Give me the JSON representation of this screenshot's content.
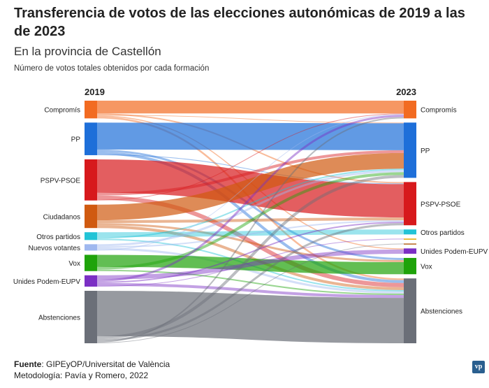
{
  "header": {
    "title": "Transferencia de votos de las elecciones autonómicas de 2019 a las de 2023",
    "subtitle": "En la provincia de Castellón",
    "note": "Número de votos totales obtenidos por cada formación"
  },
  "footer": {
    "source_label": "Fuente",
    "source_text": ": GIPEyOP/Universitat de València",
    "method": "Metodología: Pavía y Romero, 2022",
    "logo": "vp"
  },
  "chart_data": {
    "type": "sankey",
    "left_label": "2019",
    "right_label": "2023",
    "sources": [
      {
        "name": "Compromís",
        "color": "#f26b21"
      },
      {
        "name": "PP",
        "color": "#1e6fd9"
      },
      {
        "name": "PSPV-PSOE",
        "color": "#d7191c"
      },
      {
        "name": "Ciudadanos",
        "color": "#d05a10"
      },
      {
        "name": "Otros partidos",
        "color": "#22c3d6"
      },
      {
        "name": "Nuevos votantes",
        "color": "#9fb8ef"
      },
      {
        "name": "Vox",
        "color": "#1fa30a"
      },
      {
        "name": "Unides Podem-EUPV",
        "color": "#7b2fc4"
      },
      {
        "name": "Abstenciones",
        "color": "#6b6f78"
      }
    ],
    "targets": [
      {
        "name": "Compromís",
        "color": "#f26b21"
      },
      {
        "name": "PP",
        "color": "#1e6fd9"
      },
      {
        "name": "PSPV-PSOE",
        "color": "#d7191c"
      },
      {
        "name": "Otros partidos",
        "color": "#22c3d6"
      },
      {
        "name": "",
        "color": "#e0a800"
      },
      {
        "name": "",
        "color": "#b5651d"
      },
      {
        "name": "Unides Podem-EUPV",
        "color": "#7b2fc4"
      },
      {
        "name": "Vox",
        "color": "#1fa30a"
      },
      {
        "name": "Abstenciones",
        "color": "#6b6f78"
      }
    ],
    "flows": [
      [
        0,
        0,
        18
      ],
      [
        0,
        2,
        2
      ],
      [
        0,
        1,
        1
      ],
      [
        0,
        6,
        1.5
      ],
      [
        0,
        8,
        2.5
      ],
      [
        1,
        1,
        38
      ],
      [
        1,
        7,
        3
      ],
      [
        1,
        8,
        4
      ],
      [
        1,
        2,
        1
      ],
      [
        2,
        2,
        47
      ],
      [
        2,
        1,
        4
      ],
      [
        2,
        8,
        6
      ],
      [
        2,
        0,
        1
      ],
      [
        3,
        1,
        22
      ],
      [
        3,
        2,
        4
      ],
      [
        3,
        7,
        3
      ],
      [
        3,
        8,
        4
      ],
      [
        4,
        3,
        7
      ],
      [
        4,
        1,
        2
      ],
      [
        4,
        8,
        2
      ],
      [
        5,
        1,
        3
      ],
      [
        5,
        2,
        2
      ],
      [
        5,
        8,
        3
      ],
      [
        5,
        0,
        1
      ],
      [
        6,
        7,
        17
      ],
      [
        6,
        1,
        4
      ],
      [
        6,
        8,
        2
      ],
      [
        7,
        6,
        6
      ],
      [
        7,
        0,
        3
      ],
      [
        7,
        2,
        2
      ],
      [
        7,
        8,
        4
      ],
      [
        7,
        4,
        1
      ],
      [
        8,
        8,
        64
      ],
      [
        8,
        1,
        4
      ],
      [
        8,
        2,
        3
      ],
      [
        8,
        0,
        2
      ],
      [
        8,
        5,
        1
      ]
    ]
  }
}
